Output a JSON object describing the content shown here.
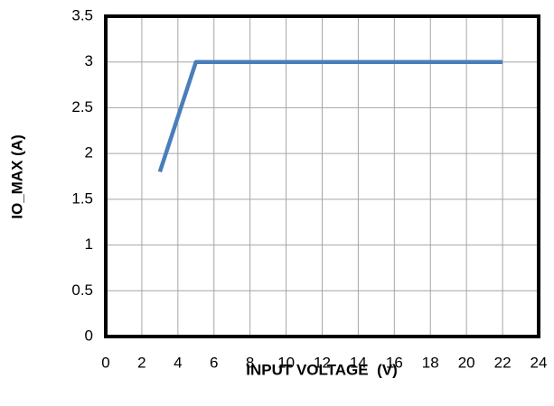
{
  "chart_data": {
    "type": "line",
    "xlabel": "INPUT VOLTAGE  (V)",
    "ylabel": "IO_MAX (A)",
    "x": [
      3,
      5,
      22
    ],
    "series": [
      {
        "name": "IO_MAX",
        "color": "#4a7ebb",
        "values": [
          1.8,
          3,
          3
        ]
      }
    ],
    "xlim": [
      0,
      24
    ],
    "xticks": [
      0,
      2,
      4,
      6,
      8,
      10,
      12,
      14,
      16,
      18,
      20,
      22,
      24
    ],
    "ylim": [
      0,
      3.5
    ],
    "yticks": [
      0,
      0.5,
      1,
      1.5,
      2,
      2.5,
      3,
      3.5
    ],
    "grid": true
  }
}
